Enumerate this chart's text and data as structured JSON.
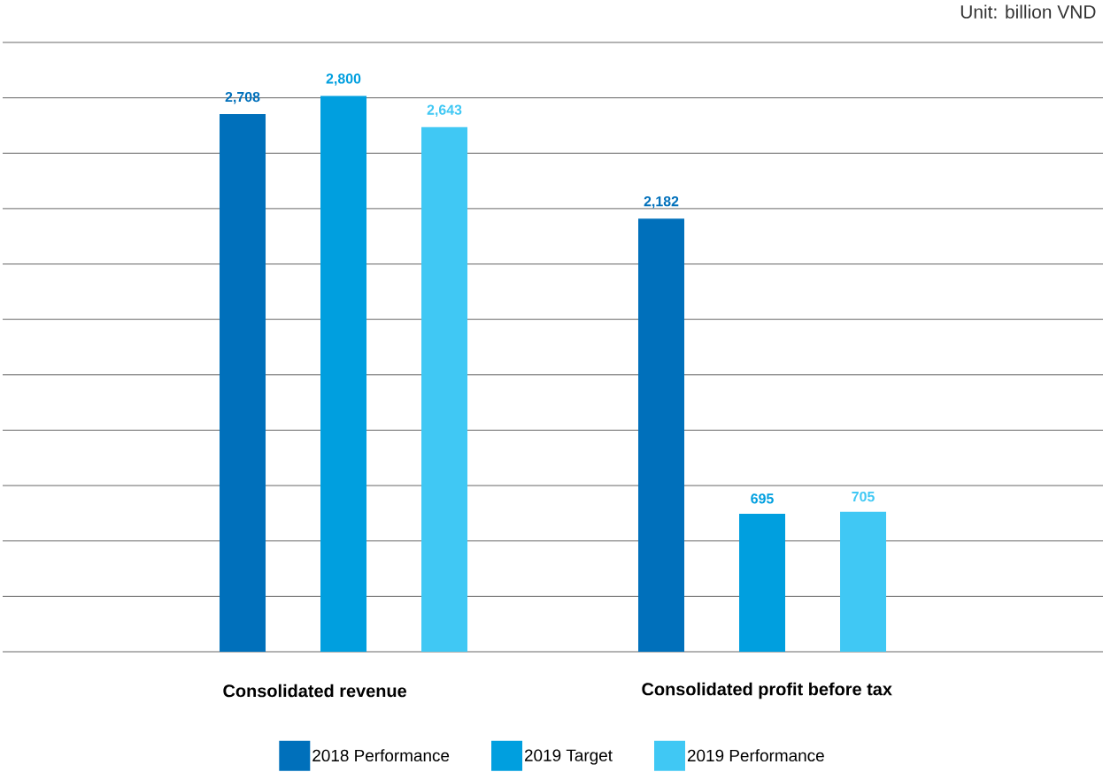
{
  "chart_data": {
    "type": "bar",
    "categories": [
      "Consolidated revenue",
      "Consolidated profit before tax"
    ],
    "series": [
      {
        "name": "2018 Performance",
        "color": "#0070bb",
        "values": [
          2708,
          2182
        ],
        "value_labels": [
          "2,708",
          "2,182"
        ]
      },
      {
        "name": "2019 Target",
        "color": "#009fdf",
        "values": [
          2800,
          695
        ],
        "value_labels": [
          "2,800",
          "695"
        ]
      },
      {
        "name": "2019 Performance",
        "color": "#40c8f4",
        "values": [
          2643,
          705
        ],
        "value_labels": [
          "2,643",
          "705"
        ]
      }
    ],
    "ylim": [
      0,
      3069
    ],
    "yticks": [
      {
        "value": 0,
        "label": null
      },
      {
        "value": 279,
        "label": null
      },
      {
        "value": 558,
        "label": null
      },
      {
        "value": 837,
        "label": null
      },
      {
        "value": 1116,
        "label": null
      },
      {
        "value": 1395,
        "label": null
      },
      {
        "value": 1674,
        "label": null
      },
      {
        "value": 1953,
        "label": null
      },
      {
        "value": 2232,
        "label": null
      },
      {
        "value": 2511,
        "label": null
      },
      {
        "value": 2790,
        "label": null
      },
      {
        "value": 3069,
        "label": null
      }
    ],
    "grid": "y",
    "legend": "bottom",
    "tick_labels": "x",
    "annotations": [
      "Unit: billion VND"
    ]
  }
}
